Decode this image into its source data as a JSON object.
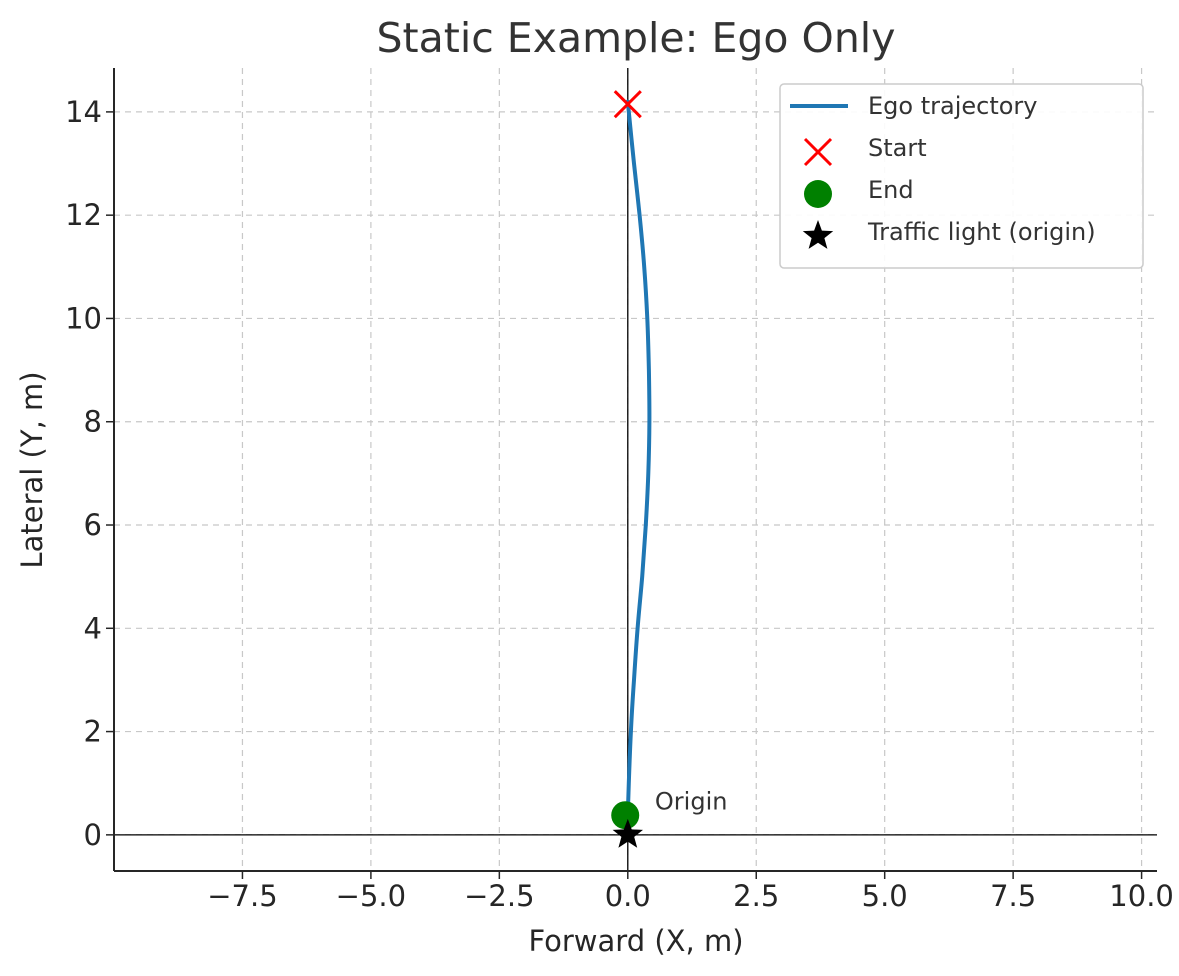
{
  "chart_data": {
    "type": "line",
    "title": "Static Example: Ego Only",
    "xlabel": "Forward (X, m)",
    "ylabel": "Lateral (Y, m)",
    "xlim": [
      -10.0,
      10.3
    ],
    "ylim": [
      -0.7,
      14.85
    ],
    "xticks": [
      -7.5,
      -5.0,
      -2.5,
      0.0,
      2.5,
      5.0,
      7.5,
      10.0
    ],
    "xtick_labels": [
      "−7.5",
      "−5.0",
      "−2.5",
      "0.0",
      "2.5",
      "5.0",
      "7.5",
      "10.0"
    ],
    "yticks": [
      0,
      2,
      4,
      6,
      8,
      10,
      12,
      14
    ],
    "ytick_labels": [
      "0",
      "2",
      "4",
      "6",
      "8",
      "10",
      "12",
      "14"
    ],
    "grid": true,
    "legend_position": "top-right",
    "series": [
      {
        "name": "Ego trajectory",
        "kind": "line",
        "color": "#1f77b4",
        "points": [
          [
            0.0,
            14.2
          ],
          [
            0.12,
            13.0
          ],
          [
            0.23,
            12.0
          ],
          [
            0.32,
            11.0
          ],
          [
            0.38,
            10.0
          ],
          [
            0.41,
            9.0
          ],
          [
            0.42,
            8.0
          ],
          [
            0.4,
            7.0
          ],
          [
            0.35,
            6.0
          ],
          [
            0.28,
            5.0
          ],
          [
            0.19,
            4.0
          ],
          [
            0.12,
            3.0
          ],
          [
            0.06,
            2.0
          ],
          [
            0.02,
            1.0
          ],
          [
            0.0,
            0.4
          ]
        ]
      },
      {
        "name": "Start",
        "kind": "marker-x",
        "color": "#ff0000",
        "points": [
          [
            0.0,
            14.15
          ]
        ]
      },
      {
        "name": "End",
        "kind": "marker-circle",
        "color": "#008000",
        "points": [
          [
            -0.05,
            0.38
          ]
        ]
      },
      {
        "name": "Traffic light (origin)",
        "kind": "marker-star",
        "color": "#000000",
        "points": [
          [
            0.0,
            0.0
          ]
        ]
      }
    ],
    "annotations": [
      {
        "text": "Origin",
        "x": 0.45,
        "y": 0.45
      }
    ],
    "reference_lines": {
      "x": 0,
      "y": 0,
      "color": "#000000"
    }
  }
}
